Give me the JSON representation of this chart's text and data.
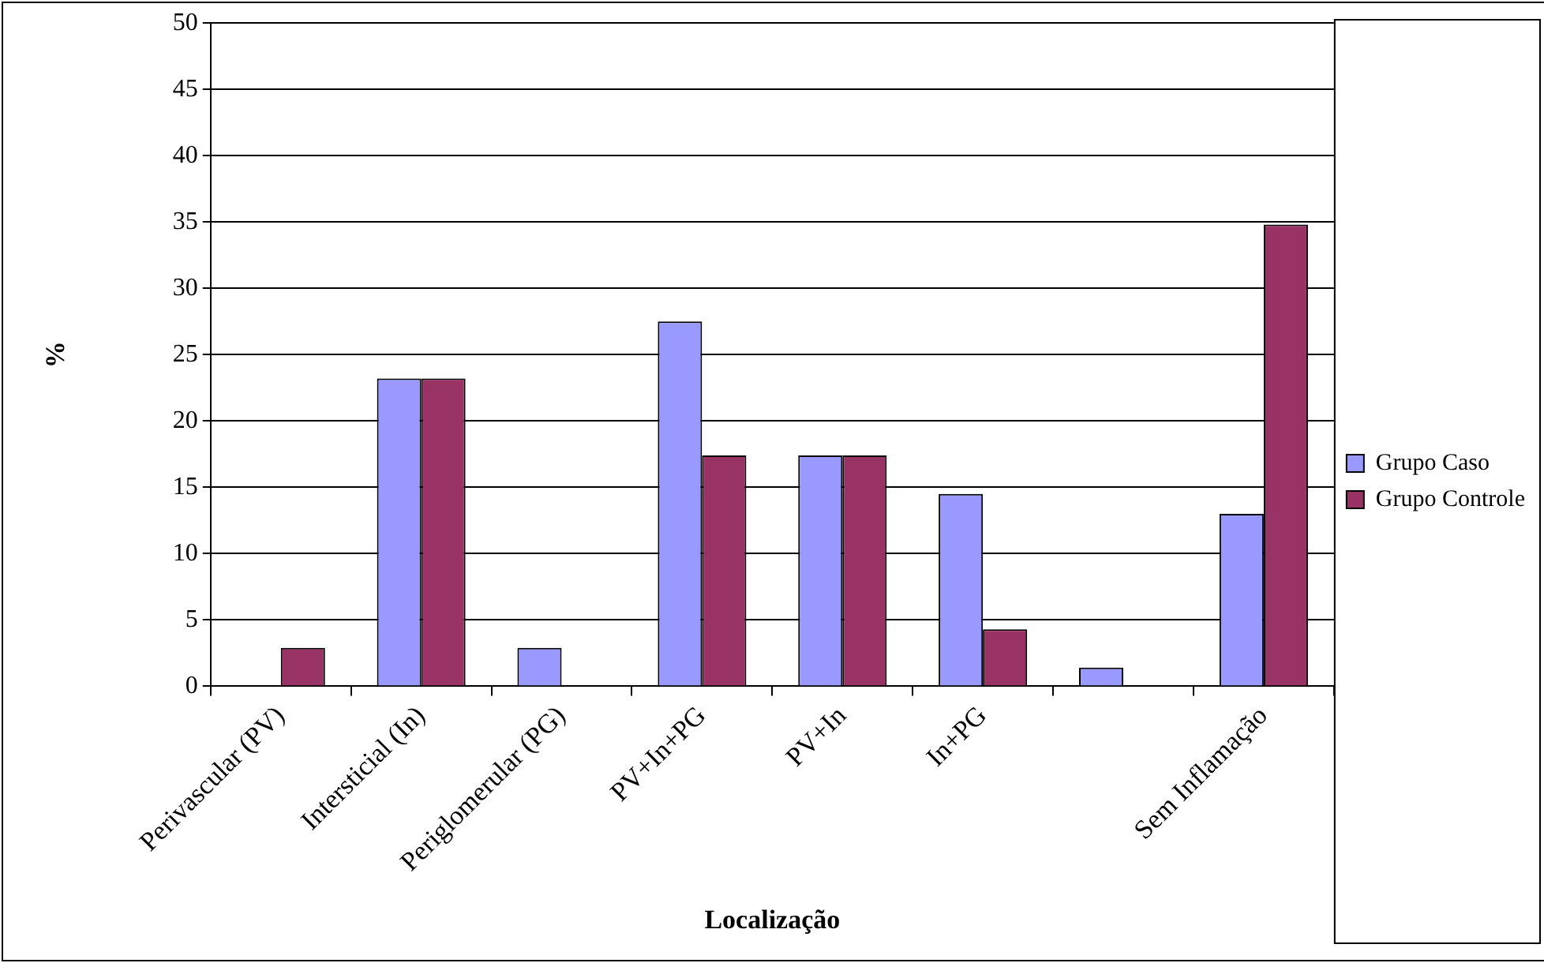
{
  "chart_data": {
    "type": "bar",
    "xlabel": "Localização",
    "ylabel": "%",
    "categories": [
      "Perivascular (PV)",
      "Intersticial (In)",
      "Periglomerular (PG)",
      "PV+In+PG",
      "PV+In",
      "In+PG",
      null,
      "Sem Inflamação"
    ],
    "series": [
      {
        "name": "Grupo Caso",
        "color": "#9999ff",
        "values": [
          0,
          23.2,
          2.9,
          27.5,
          17.4,
          14.5,
          1.4,
          13.0
        ]
      },
      {
        "name": "Grupo Controle",
        "color": "#993366",
        "values": [
          2.9,
          23.2,
          0,
          17.4,
          17.4,
          4.3,
          0,
          34.8
        ]
      }
    ],
    "ylim": [
      0,
      50
    ],
    "yticks": [
      0,
      5,
      10,
      15,
      20,
      25,
      30,
      35,
      40,
      45,
      50
    ],
    "grid": "y",
    "legend": "right"
  }
}
